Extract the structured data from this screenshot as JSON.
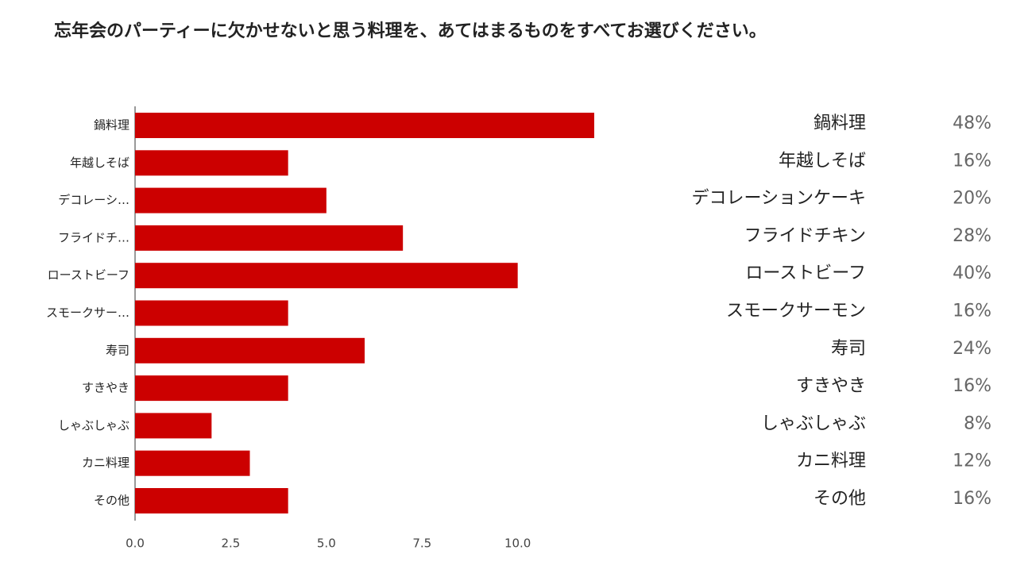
{
  "chart_data": {
    "type": "hbar",
    "title": "忘年会のパーティーに欠かせないと思う料理を、あてはまるものをすべてお選びください。",
    "categories": [
      "鍋料理",
      "年越しそば",
      "デコレーシ…",
      "フライドチ…",
      "ローストビーフ",
      "スモークサー…",
      "寿司",
      "すきやき",
      "しゃぶしゃぶ",
      "カニ料理",
      "その他"
    ],
    "values": [
      12,
      4,
      5,
      7,
      10,
      4,
      6,
      4,
      2,
      3,
      4
    ],
    "color": "#cc0000",
    "xlim": [
      0,
      12
    ],
    "xticks": [
      {
        "value": 0,
        "label": "0.0"
      },
      2.5,
      {
        "value": 5,
        "label": "5.0"
      },
      7.5,
      {
        "value": 10,
        "label": "10.0"
      }
    ],
    "grid": false
  },
  "legend_table": {
    "rows": [
      [
        "鍋料理",
        "48%"
      ],
      [
        "年越しそば",
        "16%"
      ],
      [
        "デコレーションケーキ",
        "20%"
      ],
      [
        "フライドチキン",
        "28%"
      ],
      [
        "ローストビーフ",
        "40%"
      ],
      [
        "スモークサーモン",
        "16%"
      ],
      [
        "寿司",
        "24%"
      ],
      [
        "すきやき",
        "16%"
      ],
      [
        "しゃぶしゃぶ",
        "8%"
      ],
      [
        "カニ料理",
        "12%"
      ],
      [
        "その他",
        "16%"
      ]
    ]
  }
}
